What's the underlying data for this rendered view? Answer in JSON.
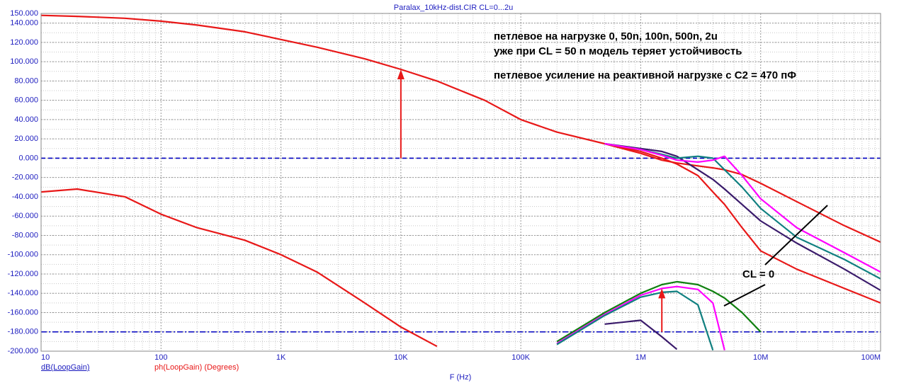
{
  "chart_data": {
    "type": "line",
    "title": "Paralax_10kHz-dist.CIR CL=0...2u",
    "xlabel": "F (Hz)",
    "trace_labels": [
      "dB(LoopGain)",
      "ph(LoopGain) (Degrees)"
    ],
    "annotations": [
      "петлевое на нагрузке 0, 50n, 100n, 500n, 2u",
      "уже при CL = 50 n модель теряет устойчивость",
      "петлевое усиление на реактивной нагрузке с С2 = 470 пФ",
      "CL = 0"
    ],
    "xscale": "log",
    "grid": true,
    "xlim": [
      10,
      100000000
    ],
    "xticks": [
      10,
      100,
      {
        "value": 1000,
        "label": "1K"
      },
      {
        "value": 10000,
        "label": "10K"
      },
      {
        "value": 100000,
        "label": "100K"
      },
      {
        "value": 1000000,
        "label": "1M"
      },
      {
        "value": 10000000,
        "label": "10M"
      },
      {
        "value": 100000000,
        "label": "100M"
      }
    ],
    "ylim": [
      -200,
      150
    ],
    "yticks": [
      {
        "value": 150,
        "label": "150.000"
      },
      {
        "value": 140,
        "label": "140.000"
      },
      {
        "value": 120,
        "label": "120.000"
      },
      {
        "value": 100,
        "label": "100.000"
      },
      {
        "value": 80,
        "label": "80.000"
      },
      {
        "value": 60,
        "label": "60.000"
      },
      {
        "value": 40,
        "label": "40.000"
      },
      {
        "value": 20,
        "label": "20.000"
      },
      {
        "value": 0,
        "label": "0.000"
      },
      {
        "value": -20,
        "label": "-20.000"
      },
      {
        "value": -40,
        "label": "-40.000"
      },
      {
        "value": -60,
        "label": "-60.000"
      },
      {
        "value": -80,
        "label": "-80.000"
      },
      {
        "value": -100,
        "label": "-100.000"
      },
      {
        "value": -120,
        "label": "-120.000"
      },
      {
        "value": -140,
        "label": "-140.000"
      },
      {
        "value": -160,
        "label": "-160.000"
      },
      {
        "value": -180,
        "label": "-180.000"
      },
      {
        "value": -200,
        "label": "-200.000"
      }
    ],
    "x": [
      10,
      20,
      50,
      100,
      200,
      500,
      1000,
      2000,
      5000,
      10000,
      20000,
      50000,
      100000,
      200000,
      500000,
      1000000,
      1500000,
      2000000,
      3000000,
      4000000,
      5000000,
      7000000,
      10000000,
      20000000,
      50000000,
      100000000
    ],
    "series": [
      {
        "color": "#e81818",
        "values": [
          148,
          147,
          145,
          142,
          138,
          131,
          123,
          115,
          103,
          92,
          80,
          60,
          40,
          27,
          15,
          7,
          0,
          -6,
          -18,
          -35,
          -48,
          -72,
          -96,
          -115,
          -135,
          -150
        ]
      },
      {
        "color": "#e81818",
        "values": [
          null,
          null,
          null,
          null,
          null,
          null,
          null,
          null,
          null,
          null,
          null,
          null,
          null,
          null,
          15,
          5,
          -2,
          -5,
          -8,
          -10,
          -12,
          -17,
          -26,
          -45,
          -70,
          -87
        ]
      },
      {
        "color": "#3a1b6b",
        "values": [
          null,
          null,
          null,
          null,
          null,
          null,
          null,
          null,
          null,
          null,
          null,
          null,
          null,
          null,
          15,
          10,
          7,
          2,
          -12,
          -22,
          -32,
          -48,
          -65,
          -88,
          -115,
          -137
        ]
      },
      {
        "color": "#108080",
        "values": [
          null,
          null,
          null,
          null,
          null,
          null,
          null,
          null,
          null,
          null,
          null,
          null,
          null,
          null,
          15,
          9,
          4,
          0,
          2,
          0,
          -12,
          -30,
          -52,
          -82,
          -105,
          -125
        ]
      },
      {
        "color": "#ff00ff",
        "values": [
          null,
          null,
          null,
          null,
          null,
          null,
          null,
          null,
          null,
          null,
          null,
          null,
          null,
          null,
          15,
          9,
          3,
          -2,
          -4,
          -2,
          2,
          -18,
          -42,
          -72,
          -98,
          -118
        ]
      },
      {
        "color": "#e81818",
        "values": [
          -35,
          -32,
          -40,
          -58,
          -72,
          -85,
          -100,
          -118,
          -150,
          -175,
          -195,
          null,
          null,
          null,
          null,
          null,
          null,
          null,
          null,
          null,
          null,
          null,
          null,
          null,
          null,
          null
        ]
      },
      {
        "color": "#108010",
        "values": [
          null,
          null,
          null,
          null,
          null,
          null,
          null,
          null,
          null,
          null,
          null,
          null,
          null,
          -190,
          -160,
          -140,
          -131,
          -128,
          -131,
          -138,
          -145,
          -160,
          -180,
          null,
          null,
          null
        ]
      },
      {
        "color": "#ff00ff",
        "values": [
          null,
          null,
          null,
          null,
          null,
          null,
          null,
          null,
          null,
          null,
          null,
          null,
          null,
          -192,
          -162,
          -142,
          -135,
          -133,
          -136,
          -150,
          -199,
          null,
          null,
          null,
          null,
          null
        ]
      },
      {
        "color": "#108080",
        "values": [
          null,
          null,
          null,
          null,
          null,
          null,
          null,
          null,
          null,
          null,
          null,
          null,
          null,
          -193,
          -163,
          -144,
          -139,
          -138,
          -152,
          -199,
          null,
          null,
          null,
          null,
          null,
          null
        ]
      },
      {
        "color": "#3a1b6b",
        "values": [
          null,
          null,
          null,
          null,
          null,
          null,
          null,
          null,
          null,
          null,
          null,
          null,
          null,
          null,
          -172,
          -168,
          -185,
          -198,
          null,
          null,
          null,
          null,
          null,
          null,
          null,
          null
        ]
      }
    ],
    "reference_lines": [
      {
        "y": 0,
        "color": "#0000c0",
        "dash": "6 4"
      },
      {
        "y": -180,
        "color": "#0000c0",
        "dash": "8 3 2 3"
      }
    ],
    "arrows": [
      {
        "x": 10000,
        "from": 0,
        "to": 92,
        "color": "#e81818"
      },
      {
        "x": 1500000,
        "from": -180,
        "to": -135,
        "color": "#e81818"
      }
    ]
  }
}
